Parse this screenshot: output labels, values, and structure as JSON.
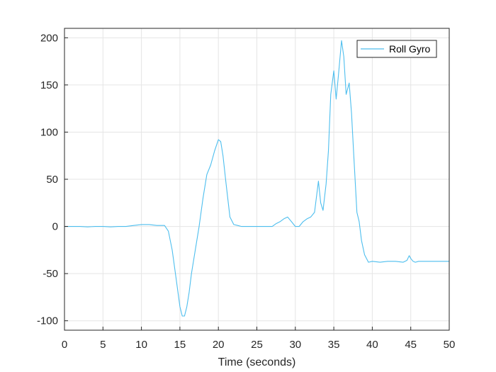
{
  "chart_data": {
    "type": "line",
    "xlabel": "Time (seconds)",
    "ylabel": "",
    "xlim": [
      0,
      50
    ],
    "ylim": [
      -110,
      210
    ],
    "xticks": [
      0,
      5,
      10,
      15,
      20,
      25,
      30,
      35,
      40,
      45,
      50
    ],
    "yticks": [
      -100,
      -50,
      0,
      50,
      100,
      150,
      200
    ],
    "xtick_labels": [
      "0",
      "5",
      "10",
      "15",
      "20",
      "25",
      "30",
      "35",
      "40",
      "45",
      "50"
    ],
    "ytick_labels": [
      "-100",
      "-50",
      "0",
      "50",
      "100",
      "150",
      "200"
    ],
    "grid": true,
    "legend_position": "top-right",
    "series": [
      {
        "name": "Roll Gyro",
        "color": "#4DBEEE",
        "x": [
          0,
          1,
          2,
          3,
          4,
          5,
          6,
          7,
          8,
          9,
          10,
          11,
          12,
          13,
          13.5,
          14,
          14.5,
          15,
          15.3,
          15.6,
          15.9,
          16.2,
          16.5,
          17,
          17.5,
          18,
          18.5,
          19,
          19.5,
          20,
          20.3,
          20.6,
          21,
          21.5,
          22,
          22.5,
          23,
          24,
          25,
          26,
          27,
          27.5,
          28,
          28.5,
          29,
          29.5,
          30,
          30.5,
          31,
          31.5,
          32,
          32.5,
          33,
          33.3,
          33.6,
          34,
          34.3,
          34.6,
          35,
          35.3,
          35.6,
          36,
          36.3,
          36.6,
          37,
          37.3,
          37.6,
          38,
          38.3,
          38.6,
          39,
          39.5,
          40,
          41,
          42,
          43,
          44,
          44.5,
          44.8,
          45,
          45.3,
          45.6,
          46,
          47,
          48,
          49,
          50
        ],
        "y": [
          0,
          0,
          0,
          -0.5,
          0,
          0,
          -0.5,
          0,
          0,
          1,
          2,
          2,
          1,
          1,
          -5,
          -25,
          -55,
          -85,
          -95,
          -95,
          -85,
          -70,
          -50,
          -25,
          0,
          30,
          55,
          65,
          80,
          92,
          90,
          75,
          45,
          10,
          2,
          1,
          0,
          0,
          0,
          0,
          0,
          3,
          5,
          8,
          10,
          5,
          0,
          0,
          5,
          8,
          10,
          15,
          48,
          25,
          17,
          45,
          80,
          140,
          165,
          135,
          160,
          197,
          180,
          140,
          152,
          120,
          75,
          15,
          5,
          -15,
          -30,
          -38,
          -37,
          -38,
          -37,
          -37,
          -38,
          -36,
          -31,
          -34,
          -37,
          -38,
          -37,
          -37,
          -37,
          -37,
          -37
        ]
      }
    ]
  }
}
